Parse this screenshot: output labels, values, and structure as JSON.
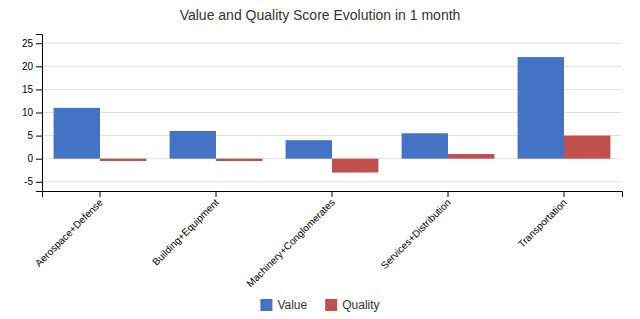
{
  "chart_data": {
    "type": "bar",
    "title": "Value and Quality Score Evolution in 1 month",
    "categories": [
      "Aerospace+Defense",
      "Building+Equipment",
      "Machinery+Conglomerates",
      "Services+Distribution",
      "Transportation"
    ],
    "series": [
      {
        "name": "Value",
        "color": "#4472C4",
        "values": [
          11,
          6,
          4,
          5.5,
          22
        ]
      },
      {
        "name": "Quality",
        "color": "#C0504D",
        "values": [
          -0.5,
          -0.5,
          -3,
          1,
          5
        ]
      }
    ],
    "ylim": [
      -7,
      27
    ],
    "yticks": [
      -5,
      0,
      5,
      10,
      15,
      20,
      25
    ],
    "grid": true,
    "legend": "bottom"
  }
}
